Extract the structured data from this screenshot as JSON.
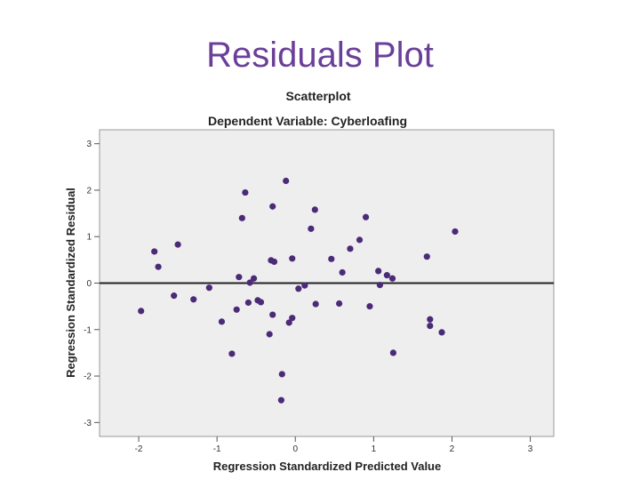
{
  "slide_title": "Residuals Plot",
  "colors": {
    "title": "#6a3f9a",
    "plot_background": "#eeeeee",
    "point": "#4b2a78",
    "reference_line": "#222222"
  },
  "chart_data": {
    "type": "scatter",
    "title": "Scatterplot",
    "subtitle": "Dependent Variable: Cyberloafing",
    "xlabel": "Regression Standardized Predicted Value",
    "ylabel": "Regression Standardized Residual",
    "xlim": [
      -2.5,
      3.3
    ],
    "ylim": [
      -3.3,
      3.3
    ],
    "xticks": [
      -2,
      -1,
      0,
      1,
      2,
      3
    ],
    "yticks": [
      3,
      2,
      1,
      0,
      -1,
      -2,
      -3
    ],
    "xtick_labels": [
      "-2",
      "-1",
      "0",
      "1",
      "2",
      "3"
    ],
    "ytick_labels": [
      "3",
      "2",
      "1",
      "0",
      "-1",
      "-2",
      "-3"
    ],
    "grid": false,
    "reference_line_y": 0,
    "points": [
      {
        "x": -1.97,
        "y": -0.6
      },
      {
        "x": -1.8,
        "y": 0.68
      },
      {
        "x": -1.75,
        "y": 0.35
      },
      {
        "x": -1.55,
        "y": -0.27
      },
      {
        "x": -1.5,
        "y": 0.83
      },
      {
        "x": -1.3,
        "y": -0.35
      },
      {
        "x": -1.1,
        "y": -0.1
      },
      {
        "x": -0.94,
        "y": -0.83
      },
      {
        "x": -0.81,
        "y": -1.52
      },
      {
        "x": -0.75,
        "y": -0.57
      },
      {
        "x": -0.72,
        "y": 0.13
      },
      {
        "x": -0.68,
        "y": 1.4
      },
      {
        "x": -0.64,
        "y": 1.95
      },
      {
        "x": -0.6,
        "y": -0.42
      },
      {
        "x": -0.58,
        "y": 0.01
      },
      {
        "x": -0.53,
        "y": 0.1
      },
      {
        "x": -0.48,
        "y": -0.37
      },
      {
        "x": -0.44,
        "y": -0.41
      },
      {
        "x": -0.33,
        "y": -1.1
      },
      {
        "x": -0.31,
        "y": 0.49
      },
      {
        "x": -0.29,
        "y": 1.65
      },
      {
        "x": -0.29,
        "y": -0.68
      },
      {
        "x": -0.27,
        "y": 0.46
      },
      {
        "x": -0.18,
        "y": -2.52
      },
      {
        "x": -0.17,
        "y": -1.96
      },
      {
        "x": -0.12,
        "y": 2.2
      },
      {
        "x": -0.08,
        "y": -0.85
      },
      {
        "x": -0.04,
        "y": -0.75
      },
      {
        "x": -0.04,
        "y": 0.53
      },
      {
        "x": 0.04,
        "y": -0.12
      },
      {
        "x": 0.12,
        "y": -0.05
      },
      {
        "x": 0.2,
        "y": 1.17
      },
      {
        "x": 0.25,
        "y": 1.58
      },
      {
        "x": 0.26,
        "y": -0.45
      },
      {
        "x": 0.46,
        "y": 0.52
      },
      {
        "x": 0.56,
        "y": -0.44
      },
      {
        "x": 0.6,
        "y": 0.23
      },
      {
        "x": 0.7,
        "y": 0.74
      },
      {
        "x": 0.82,
        "y": 0.93
      },
      {
        "x": 0.9,
        "y": 1.42
      },
      {
        "x": 0.95,
        "y": -0.5
      },
      {
        "x": 1.06,
        "y": 0.26
      },
      {
        "x": 1.08,
        "y": -0.04
      },
      {
        "x": 1.17,
        "y": 0.17
      },
      {
        "x": 1.24,
        "y": 0.1
      },
      {
        "x": 1.25,
        "y": -1.5
      },
      {
        "x": 1.68,
        "y": 0.57
      },
      {
        "x": 1.72,
        "y": -0.78
      },
      {
        "x": 1.72,
        "y": -0.92
      },
      {
        "x": 1.87,
        "y": -1.06
      },
      {
        "x": 2.04,
        "y": 1.11
      }
    ]
  }
}
